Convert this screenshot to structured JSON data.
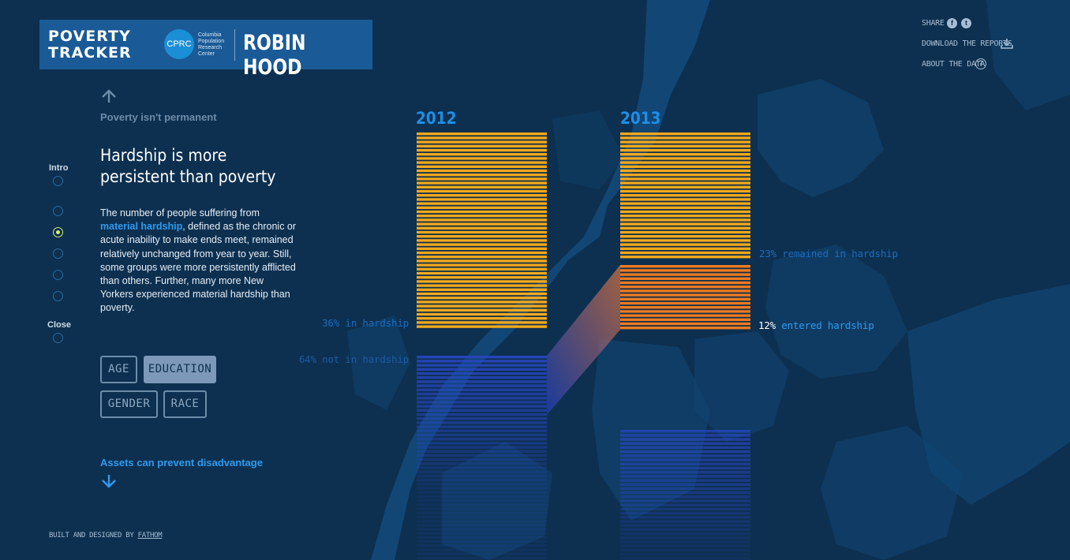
{
  "logo": {
    "poverty_tracker": [
      "POVERTY",
      "TRACKER"
    ],
    "cprc_mark": "CPRC",
    "cprc_text": [
      "Columbia",
      "Population",
      "Research",
      "Center"
    ],
    "robinhood": "ROBIN HOOD"
  },
  "top_nav": {
    "share": "SHARE",
    "download": "DOWNLOAD THE REPORTS",
    "about": "ABOUT THE DATA",
    "facebook_icon": "facebook-icon",
    "twitter_icon": "twitter-icon",
    "download_icon": "download-icon",
    "help_icon": "question-icon"
  },
  "side_nav": {
    "intro": "Intro",
    "close": "Close",
    "active_index": 2
  },
  "story": {
    "prev_link": "Poverty isn't permanent",
    "title": [
      "Hardship is more",
      "persistent than poverty"
    ],
    "body_pre": "The number of people suffering from ",
    "body_highlight": "material hardship",
    "body_post": ", defined as the chronic or acute inability to make ends meet, remained relatively unchanged from year to year. Still, some groups were more persistently afflicted than others. Further, many more New Yorkers experienced material hardship than poverty.",
    "filters": [
      "AGE",
      "EDUCATION",
      "GENDER",
      "RACE"
    ],
    "active_filter": "EDUCATION",
    "next_link": "Assets can prevent disadvantage"
  },
  "credit": {
    "prefix": "BUILT AND DESIGNED BY ",
    "link": "FATHOM"
  },
  "colors": {
    "background": "#0d3050",
    "accent_blue": "#1e8ee8",
    "hardship_yellow": "#f2a81a",
    "entered_orange": "#ee7a1e",
    "not_hardship_blue": "#2a47c8"
  },
  "chart_data": {
    "type": "bar",
    "categories": [
      "2012",
      "2013"
    ],
    "series_2012": {
      "in_hardship_pct": 36,
      "not_in_hardship_pct": 64
    },
    "series_2013": {
      "remained_in_hardship_pct": 23,
      "entered_hardship_pct": 12
    },
    "labels": {
      "in_hardship_2012": "36% in hardship",
      "not_hardship_2012": "64% not in hardship",
      "remained_2013": "23% remained in hardship",
      "entered_pct": "12%",
      "entered_text": " entered hardship"
    }
  }
}
